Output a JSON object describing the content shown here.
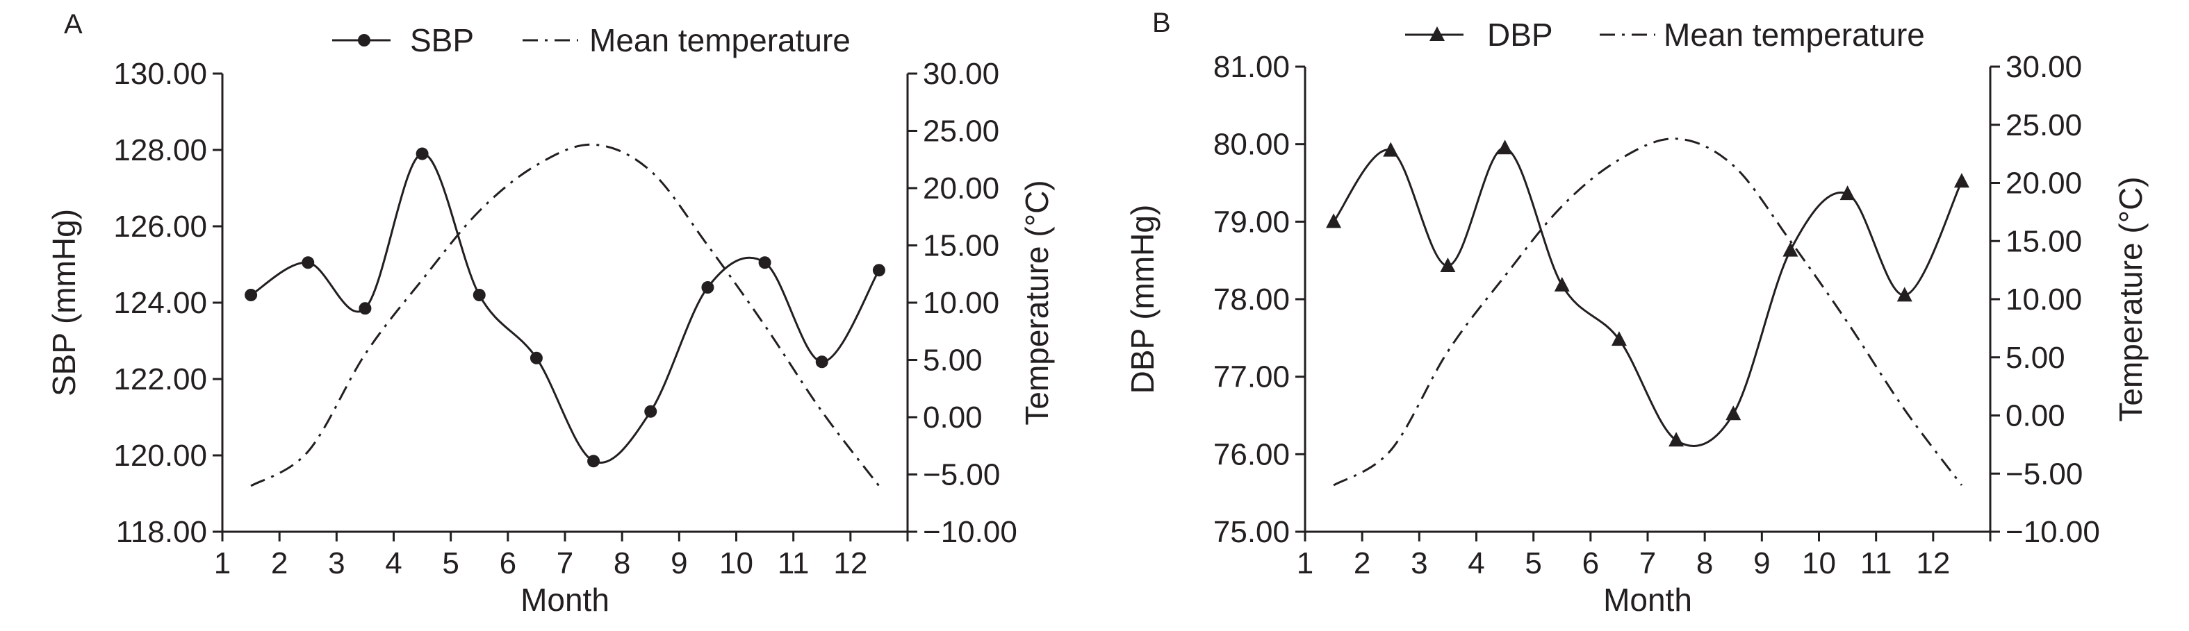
{
  "chart_data": [
    {
      "type": "line",
      "panel_label": "A",
      "xlabel": "Month",
      "ylabel_left": "SBP (mmHg)",
      "ylabel_right": "Temperature (°C)",
      "x_ticks": [
        "1",
        "2",
        "3",
        "4",
        "5",
        "6",
        "7",
        "8",
        "9",
        "10",
        "11",
        "12"
      ],
      "xlim": [
        1,
        13
      ],
      "ylim_left": [
        118,
        130
      ],
      "ylim_right": [
        -10,
        30
      ],
      "y_ticks_left": [
        "118.00",
        "120.00",
        "122.00",
        "124.00",
        "126.00",
        "128.00",
        "130.00"
      ],
      "y_ticks_right": [
        "−10.00",
        "−5.00",
        "0.00",
        "5.00",
        "10.00",
        "15.00",
        "20.00",
        "25.00",
        "30.00"
      ],
      "grid": false,
      "legend_position": "top",
      "series": [
        {
          "name": "SBP",
          "axis": "left",
          "marker": "circle",
          "line_style": "solid",
          "x": [
            1.5,
            2.5,
            3.5,
            4.5,
            5.5,
            6.5,
            7.5,
            8.5,
            9.5,
            10.5,
            11.5,
            12.5
          ],
          "y": [
            124.2,
            125.05,
            123.85,
            127.9,
            124.2,
            122.55,
            119.85,
            121.15,
            124.4,
            125.05,
            122.45,
            124.85
          ]
        },
        {
          "name": "Mean temperature",
          "axis": "right",
          "marker": "none",
          "line_style": "dash-dot",
          "x": [
            1.5,
            2.5,
            3.5,
            4.5,
            5.5,
            6.5,
            7.5,
            8.5,
            9.5,
            10.5,
            11.5,
            12.5
          ],
          "y": [
            -6.0,
            -3.0,
            5.5,
            12.0,
            18.0,
            22.0,
            23.8,
            21.5,
            15.0,
            8.0,
            0.5,
            -6.0
          ]
        }
      ]
    },
    {
      "type": "line",
      "panel_label": "B",
      "xlabel": "Month",
      "ylabel_left": "DBP (mmHg)",
      "ylabel_right": "Temperature (°C)",
      "x_ticks": [
        "1",
        "2",
        "3",
        "4",
        "5",
        "6",
        "7",
        "8",
        "9",
        "10",
        "11",
        "12"
      ],
      "xlim": [
        1,
        13
      ],
      "ylim_left": [
        75,
        81
      ],
      "ylim_right": [
        -10,
        30
      ],
      "y_ticks_left": [
        "75.00",
        "76.00",
        "77.00",
        "78.00",
        "79.00",
        "80.00",
        "81.00"
      ],
      "y_ticks_right": [
        "−10.00",
        "−5.00",
        "0.00",
        "5.00",
        "10.00",
        "15.00",
        "20.00",
        "25.00",
        "30.00"
      ],
      "grid": false,
      "legend_position": "top",
      "series": [
        {
          "name": "DBP",
          "axis": "left",
          "marker": "triangle",
          "line_style": "solid",
          "x": [
            1.5,
            2.5,
            3.5,
            4.5,
            5.5,
            6.5,
            7.5,
            8.5,
            9.5,
            10.5,
            11.5,
            12.5
          ],
          "y": [
            79.0,
            79.92,
            78.43,
            79.95,
            78.18,
            77.48,
            76.18,
            76.52,
            78.63,
            79.36,
            78.05,
            79.52
          ]
        },
        {
          "name": "Mean temperature",
          "axis": "right",
          "marker": "none",
          "line_style": "dash-dot",
          "x": [
            1.5,
            2.5,
            3.5,
            4.5,
            5.5,
            6.5,
            7.5,
            8.5,
            9.5,
            10.5,
            11.5,
            12.5
          ],
          "y": [
            -6.0,
            -3.0,
            5.5,
            12.0,
            18.0,
            22.0,
            23.8,
            21.5,
            15.0,
            8.0,
            0.5,
            -6.0
          ]
        }
      ]
    }
  ]
}
